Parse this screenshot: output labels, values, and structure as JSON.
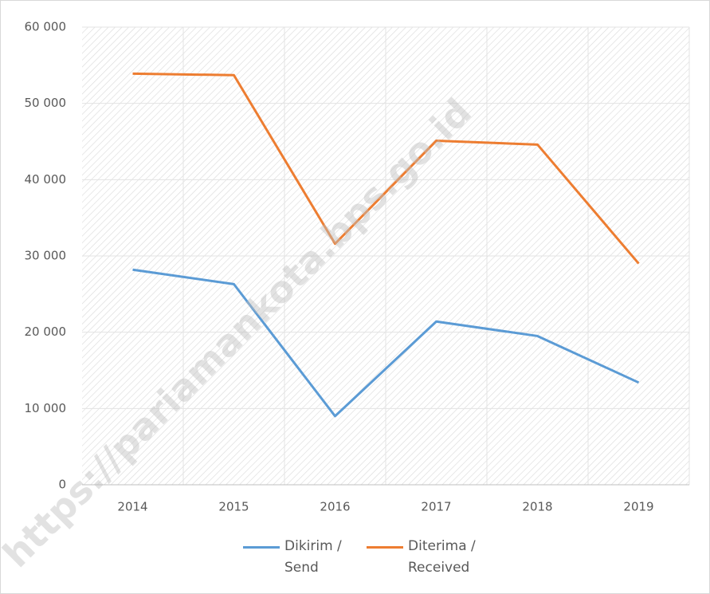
{
  "chart_data": {
    "type": "line",
    "categories": [
      "2014",
      "2015",
      "2016",
      "2017",
      "2018",
      "2019"
    ],
    "series": [
      {
        "name": "Dikirim / Send",
        "color": "#5b9bd5",
        "values": [
          28200,
          26300,
          9000,
          21400,
          19500,
          13400
        ]
      },
      {
        "name": "Diterima / Received",
        "color": "#ed7d31",
        "values": [
          53900,
          53700,
          31600,
          45100,
          44600,
          29000
        ]
      }
    ],
    "ylim": [
      0,
      60000
    ],
    "yticks": [
      0,
      {
        "value": 10000,
        "label": "10 000"
      },
      {
        "value": 20000,
        "label": "20 000"
      },
      {
        "value": 30000,
        "label": "30 000"
      },
      {
        "value": 40000,
        "label": "40 000"
      },
      {
        "value": 50000,
        "label": "50 000"
      },
      {
        "value": 60000,
        "label": "60 000"
      }
    ],
    "grid": true,
    "legend": "bottom",
    "watermark": "https://pariamankota.bps.go.id"
  }
}
